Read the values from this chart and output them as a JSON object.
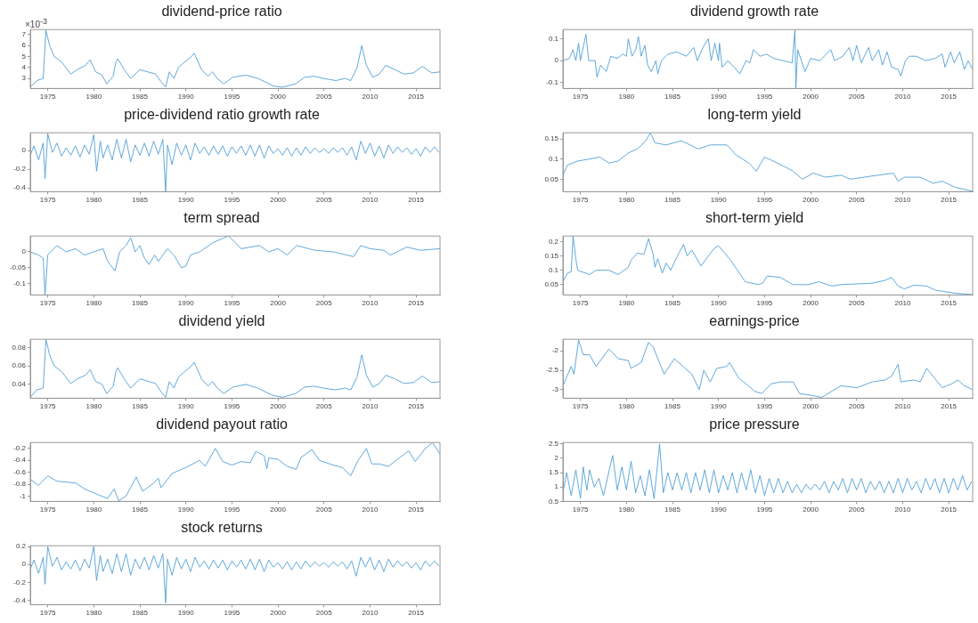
{
  "chart_data": [
    {
      "type": "line",
      "title": "dividend-price ratio",
      "color": "#4f9fd6",
      "annotations": [
        "×10$^{-3}$"
      ],
      "xlim": [
        1973.1,
        2017.6
      ],
      "xticks": [
        1975,
        1980,
        1985,
        1990,
        1995,
        2000,
        2005,
        2010,
        2015
      ],
      "ylim": [
        2.08,
        7.47
      ],
      "yticks": [
        3,
        4,
        5,
        6,
        7
      ],
      "x": [
        1973.1,
        1973.8,
        1974.5,
        1974.8,
        1975.2,
        1975.7,
        1976.5,
        1977.5,
        1978.2,
        1979.1,
        1979.6,
        1980.2,
        1980.9,
        1981.4,
        1982.1,
        1982.4,
        1982.6,
        1983.3,
        1984.0,
        1985.0,
        1986.7,
        1987.3,
        1987.8,
        1988.2,
        1988.7,
        1989.2,
        1990.0,
        1990.5,
        1990.9,
        1991.7,
        1992.4,
        1992.9,
        1993.4,
        1994.1,
        1995.1,
        1996.5,
        1997.8,
        1998.8,
        1999.5,
        2000.5,
        2001.9,
        2002.9,
        2003.9,
        2004.9,
        2006.3,
        2007.3,
        2007.9,
        2008.6,
        2009.1,
        2009.6,
        2010.3,
        2011.0,
        2011.7,
        2012.7,
        2013.7,
        2014.7,
        2015.7,
        2016.7,
        2017.6
      ],
      "values": [
        2.2,
        2.8,
        3.0,
        7.4,
        6.0,
        5.0,
        4.5,
        3.4,
        3.8,
        4.2,
        4.7,
        3.6,
        3.3,
        2.5,
        3.2,
        4.5,
        4.8,
        3.8,
        3.0,
        3.8,
        3.4,
        2.7,
        2.2,
        3.6,
        3.0,
        4.0,
        4.6,
        4.9,
        5.3,
        3.8,
        3.2,
        3.6,
        3.0,
        2.5,
        3.1,
        3.3,
        3.0,
        2.6,
        2.3,
        2.2,
        2.5,
        3.1,
        3.2,
        3.0,
        2.8,
        3.0,
        2.8,
        4.0,
        6.0,
        4.2,
        3.1,
        3.4,
        4.2,
        3.8,
        3.4,
        3.5,
        4.1,
        3.5,
        3.6
      ]
    },
    {
      "type": "line",
      "title": "dividend growth rate",
      "color": "#4f9fd6",
      "xlim": [
        1973.1,
        2017.6
      ],
      "xticks": [
        1975,
        1980,
        1985,
        1990,
        1995,
        2000,
        2005,
        2010,
        2015
      ],
      "ylim": [
        -0.127,
        0.142
      ],
      "yticks": [
        -0.1,
        0,
        0.1
      ],
      "x": [
        1973.1,
        1973.8,
        1974.2,
        1974.5,
        1974.8,
        1975.0,
        1975.6,
        1975.9,
        1976.6,
        1976.8,
        1977.2,
        1977.8,
        1978.3,
        1979,
        1979.6,
        1980,
        1980.2,
        1980.6,
        1981,
        1981.3,
        1981.6,
        1982,
        1982.3,
        1982.7,
        1983.2,
        1983.4,
        1983.8,
        1984.5,
        1985.5,
        1986.5,
        1987.3,
        1987.7,
        1988.3,
        1988.9,
        1989.2,
        1989.6,
        1990,
        1990.1,
        1990.4,
        1991,
        1991.7,
        1992.3,
        1993,
        1993.4,
        1993.8,
        1994.5,
        1995.2,
        1996,
        1997,
        1998,
        1998.3,
        1998.4,
        1998.6,
        1999,
        1999.4,
        2000,
        2001,
        2002.2,
        2002.6,
        2003.5,
        2004.2,
        2004.6,
        2005,
        2005.5,
        2006.3,
        2006.7,
        2007.4,
        2007.8,
        2008.3,
        2008.8,
        2009.5,
        2009.8,
        2010.3,
        2010.7,
        2011.5,
        2012.5,
        2013.5,
        2014.3,
        2014.6,
        2015.2,
        2015.6,
        2016.2,
        2016.7,
        2017.1,
        2017.6
      ],
      "values": [
        0,
        0.01,
        0.05,
        0,
        0.08,
        0,
        0.12,
        0,
        0,
        -0.075,
        -0.02,
        -0.05,
        0.02,
        0.01,
        0.03,
        0.02,
        0.1,
        0.02,
        0.05,
        0.11,
        0.02,
        0.07,
        -0.02,
        -0.05,
        0,
        -0.06,
        0,
        0.03,
        0.04,
        0.02,
        0.06,
        0,
        0.06,
        0.1,
        0,
        0.08,
        0,
        0.08,
        -0.03,
        0,
        -0.03,
        -0.06,
        0,
        -0.01,
        0.05,
        0.02,
        0.03,
        0.01,
        0,
        -0.01,
        0.142,
        -0.127,
        0.05,
        0,
        -0.05,
        0.01,
        0,
        0.05,
        0,
        0.02,
        0.06,
        0,
        0.07,
        -0.01,
        0.06,
        0,
        0.05,
        -0.02,
        0.04,
        -0.03,
        -0.04,
        -0.07,
        0,
        0.02,
        0.02,
        0,
        0.01,
        0.03,
        -0.03,
        0.04,
        -0.01,
        0.04,
        -0.04,
        0,
        -0.04
      ]
    },
    {
      "type": "line",
      "title": "price-dividend ratio growth rate",
      "color": "#4f9fd6",
      "xlim": [
        1973.1,
        2017.6
      ],
      "xticks": [
        1975,
        1980,
        1985,
        1990,
        1995,
        2000,
        2005,
        2010,
        2015
      ],
      "ylim": [
        -0.44,
        0.19
      ],
      "yticks": [
        -0.4,
        -0.2,
        0
      ],
      "x": [
        1973.1,
        1973.5,
        1974,
        1974.5,
        1974.7,
        1975,
        1975.5,
        1976,
        1976.5,
        1977,
        1977.5,
        1978,
        1978.5,
        1979,
        1979.5,
        1980,
        1980.3,
        1980.7,
        1981,
        1981.5,
        1982,
        1982.5,
        1983,
        1983.5,
        1984,
        1984.5,
        1985,
        1985.5,
        1986,
        1986.5,
        1987,
        1987.5,
        1987.8,
        1988,
        1988.5,
        1989,
        1989.5,
        1990,
        1990.5,
        1991,
        1991.5,
        1992,
        1992.5,
        1993,
        1993.5,
        1994,
        1994.5,
        1995,
        1995.5,
        1996,
        1996.5,
        1997,
        1997.5,
        1998,
        1998.5,
        1999,
        1999.5,
        2000,
        2000.5,
        2001,
        2001.5,
        2002,
        2002.5,
        2003,
        2003.5,
        2004,
        2004.5,
        2005,
        2005.5,
        2006,
        2006.5,
        2007,
        2007.5,
        2008,
        2008.5,
        2009,
        2009.5,
        2010,
        2010.5,
        2011,
        2011.5,
        2012,
        2012.5,
        2013,
        2013.5,
        2014,
        2014.5,
        2015,
        2015.5,
        2016,
        2016.5,
        2017,
        2017.5
      ],
      "values": [
        -0.05,
        0.05,
        -0.1,
        0.08,
        -0.3,
        0.18,
        -0.02,
        0.08,
        -0.06,
        0.03,
        -0.05,
        0.05,
        -0.07,
        0.06,
        -0.04,
        0.17,
        -0.22,
        0.1,
        -0.08,
        0.06,
        -0.1,
        0.12,
        -0.08,
        0.12,
        -0.12,
        0.06,
        -0.05,
        0.08,
        -0.06,
        0.1,
        -0.04,
        0.12,
        -0.44,
        0.06,
        -0.15,
        0.08,
        -0.05,
        0.06,
        -0.1,
        0.08,
        -0.03,
        0.04,
        -0.05,
        0.05,
        -0.04,
        0.05,
        -0.06,
        0.04,
        -0.03,
        0.05,
        -0.05,
        0.06,
        -0.06,
        0.06,
        -0.08,
        0.05,
        -0.03,
        0.02,
        -0.05,
        0.03,
        -0.06,
        0.03,
        -0.05,
        0.04,
        -0.03,
        0.03,
        -0.02,
        0.02,
        -0.03,
        0.03,
        -0.02,
        0.03,
        -0.05,
        0.04,
        -0.1,
        0.1,
        -0.03,
        0.08,
        -0.06,
        0.05,
        -0.08,
        0.06,
        -0.03,
        0.04,
        -0.02,
        0.03,
        -0.04,
        0.02,
        -0.06,
        0.04,
        -0.02,
        0.04,
        -0.02
      ]
    },
    {
      "type": "line",
      "title": "long-term yield",
      "color": "#4f9fd6",
      "xlim": [
        1973.1,
        2017.6
      ],
      "xticks": [
        1975,
        1980,
        1985,
        1990,
        1995,
        2000,
        2005,
        2010,
        2015
      ],
      "ylim": [
        0.019,
        0.165
      ],
      "yticks": [
        0.05,
        0.1,
        0.15
      ],
      "x": [
        1973.1,
        1973.6,
        1974.7,
        1976.0,
        1977.1,
        1978.1,
        1979.1,
        1980.2,
        1981.2,
        1982.1,
        1982.6,
        1983.1,
        1984.3,
        1986.0,
        1987.8,
        1989.1,
        1990.9,
        1991.9,
        1993.3,
        1994.1,
        1995.0,
        1996.4,
        1998.1,
        1999.1,
        2000.3,
        2001.6,
        2003.3,
        2004.3,
        2006.7,
        2009.0,
        2009.5,
        2010.2,
        2011.9,
        2013.3,
        2014.3,
        2015.7,
        2016.7,
        2017.6
      ],
      "values": [
        0.06,
        0.085,
        0.095,
        0.1,
        0.105,
        0.09,
        0.095,
        0.115,
        0.125,
        0.145,
        0.165,
        0.14,
        0.135,
        0.145,
        0.125,
        0.135,
        0.135,
        0.11,
        0.09,
        0.07,
        0.105,
        0.09,
        0.07,
        0.05,
        0.065,
        0.055,
        0.06,
        0.05,
        0.058,
        0.065,
        0.045,
        0.055,
        0.055,
        0.04,
        0.045,
        0.03,
        0.025,
        0.02
      ]
    },
    {
      "type": "line",
      "title": "term spread",
      "color": "#4f9fd6",
      "xlim": [
        1973.1,
        2017.6
      ],
      "xticks": [
        1975,
        1980,
        1985,
        1990,
        1995,
        2000,
        2005,
        2010,
        2015
      ],
      "ylim": [
        -0.136,
        0.05
      ],
      "yticks": [
        -0.1,
        -0.05,
        0
      ],
      "x": [
        1973.1,
        1974,
        1974.5,
        1974.7,
        1975,
        1976,
        1977,
        1978,
        1979,
        1980,
        1981,
        1981.5,
        1982.3,
        1982.8,
        1983.5,
        1984,
        1984.5,
        1985,
        1985.5,
        1986,
        1986.6,
        1987,
        1988,
        1988.7,
        1989.5,
        1990,
        1990.5,
        1991.5,
        1993,
        1994.6,
        1995,
        1996,
        1998,
        1999,
        2000,
        2001,
        2002,
        2004,
        2006,
        2007.5,
        2008.2,
        2009,
        2010,
        2011.5,
        2012.2,
        2014,
        2015.5,
        2017.6
      ],
      "values": [
        0,
        -0.01,
        -0.02,
        -0.136,
        -0.01,
        0.02,
        0,
        0.01,
        -0.01,
        0,
        0.01,
        -0.03,
        -0.06,
        0,
        0.02,
        0.045,
        0,
        0.02,
        -0.02,
        -0.04,
        -0.01,
        -0.03,
        0.01,
        -0.01,
        -0.05,
        -0.045,
        -0.01,
        0,
        0.03,
        0.05,
        0.04,
        0.01,
        0.02,
        0,
        0.01,
        -0.01,
        0.02,
        0.005,
        0,
        -0.01,
        -0.015,
        0.02,
        0.01,
        0.005,
        -0.01,
        0.015,
        0.005,
        0.01
      ]
    },
    {
      "type": "line",
      "title": "short-term yield",
      "color": "#4f9fd6",
      "xlim": [
        1973.1,
        2017.6
      ],
      "xticks": [
        1975,
        1980,
        1985,
        1990,
        1995,
        2000,
        2005,
        2010,
        2015
      ],
      "ylim": [
        0.014,
        0.219
      ],
      "yticks": [
        0.05,
        0.1,
        0.15,
        0.2
      ],
      "x": [
        1973.1,
        1973.6,
        1974.0,
        1974.2,
        1974.5,
        1974.7,
        1976.0,
        1976.7,
        1978.1,
        1979.1,
        1980.2,
        1980.5,
        1981.2,
        1981.9,
        1982.4,
        1982.9,
        1983.1,
        1983.4,
        1983.9,
        1984.3,
        1984.8,
        1985.7,
        1986.2,
        1986.6,
        1987.1,
        1988.1,
        1989.5,
        1990.0,
        1991.2,
        1992.9,
        1994.3,
        1994.8,
        1995.3,
        1996.7,
        1998.1,
        1999.8,
        2000.9,
        2002.3,
        2003.3,
        2006.7,
        2008.1,
        2008.8,
        2009.5,
        2010.2,
        2011.2,
        2012.6,
        2013.6,
        2014.7,
        2015.7,
        2016.8,
        2017.6
      ],
      "values": [
        0.06,
        0.09,
        0.095,
        0.219,
        0.14,
        0.1,
        0.085,
        0.1,
        0.1,
        0.085,
        0.11,
        0.135,
        0.16,
        0.155,
        0.21,
        0.155,
        0.11,
        0.14,
        0.09,
        0.125,
        0.1,
        0.16,
        0.19,
        0.15,
        0.17,
        0.115,
        0.175,
        0.185,
        0.14,
        0.06,
        0.05,
        0.055,
        0.08,
        0.075,
        0.05,
        0.05,
        0.06,
        0.045,
        0.05,
        0.055,
        0.065,
        0.075,
        0.045,
        0.035,
        0.048,
        0.045,
        0.03,
        0.025,
        0.02,
        0.017,
        0.015
      ]
    },
    {
      "type": "line",
      "title": "dividend yield",
      "color": "#4f9fd6",
      "xlim": [
        1973.1,
        2017.6
      ],
      "xticks": [
        1975,
        1980,
        1985,
        1990,
        1995,
        2000,
        2005,
        2010,
        2015
      ],
      "ylim": [
        0.025,
        0.089
      ],
      "yticks": [
        0.04,
        0.06,
        0.08
      ],
      "x": [
        1973.1,
        1973.8,
        1974.5,
        1974.8,
        1975.2,
        1975.7,
        1976.5,
        1977.5,
        1978.2,
        1979.1,
        1979.6,
        1980.2,
        1980.9,
        1981.4,
        1982.1,
        1982.4,
        1982.6,
        1983.3,
        1984.0,
        1985.0,
        1986.7,
        1987.3,
        1987.8,
        1988.2,
        1988.7,
        1989.2,
        1990.0,
        1990.5,
        1990.9,
        1991.7,
        1992.4,
        1992.9,
        1993.4,
        1994.1,
        1995.1,
        1996.5,
        1997.8,
        1998.8,
        1999.5,
        2000.5,
        2001.9,
        2002.9,
        2003.9,
        2004.9,
        2006.3,
        2007.3,
        2007.9,
        2008.6,
        2009.1,
        2009.6,
        2010.3,
        2011.0,
        2011.7,
        2012.7,
        2013.7,
        2014.7,
        2015.7,
        2016.7,
        2017.6
      ],
      "values": [
        0.026,
        0.034,
        0.036,
        0.089,
        0.072,
        0.06,
        0.054,
        0.041,
        0.046,
        0.05,
        0.056,
        0.043,
        0.04,
        0.03,
        0.038,
        0.054,
        0.058,
        0.046,
        0.036,
        0.046,
        0.041,
        0.032,
        0.026,
        0.043,
        0.036,
        0.048,
        0.055,
        0.059,
        0.064,
        0.046,
        0.038,
        0.043,
        0.036,
        0.03,
        0.037,
        0.04,
        0.036,
        0.031,
        0.028,
        0.026,
        0.03,
        0.037,
        0.038,
        0.036,
        0.034,
        0.036,
        0.034,
        0.048,
        0.072,
        0.05,
        0.037,
        0.041,
        0.05,
        0.046,
        0.041,
        0.042,
        0.049,
        0.042,
        0.043
      ]
    },
    {
      "type": "line",
      "title": "earnings-price",
      "color": "#4f9fd6",
      "xlim": [
        1973.1,
        2017.6
      ],
      "xticks": [
        1975,
        1980,
        1985,
        1990,
        1995,
        2000,
        2005,
        2010,
        2015
      ],
      "ylim": [
        -3.22,
        -1.7
      ],
      "yticks": [
        -3,
        -2.5,
        -2
      ],
      "x": [
        1973.1,
        1974.0,
        1974.3,
        1974.8,
        1975.3,
        1976.0,
        1976.7,
        1978.1,
        1979.1,
        1980.2,
        1980.5,
        1981.6,
        1982.4,
        1982.9,
        1984.1,
        1985.2,
        1987.1,
        1987.9,
        1988.4,
        1989.1,
        1989.8,
        1990.9,
        1991.2,
        1992.2,
        1994.0,
        1994.7,
        1995.7,
        1996.7,
        1998.1,
        1998.8,
        2000.2,
        2001.2,
        2003.3,
        2005.0,
        2006.7,
        2008.1,
        2008.8,
        2009.5,
        2009.8,
        2011.2,
        2011.9,
        2012.6,
        2014.3,
        2015.3,
        2016.0,
        2016.7,
        2017.6
      ],
      "values": [
        -2.9,
        -2.4,
        -2.6,
        -1.72,
        -2.1,
        -2.1,
        -2.4,
        -1.95,
        -2.2,
        -2.25,
        -2.45,
        -2.3,
        -1.78,
        -1.9,
        -2.6,
        -2.2,
        -2.6,
        -3.0,
        -2.5,
        -2.8,
        -2.45,
        -2.4,
        -2.3,
        -2.7,
        -3.05,
        -3.1,
        -2.85,
        -2.8,
        -2.8,
        -3.1,
        -3.15,
        -3.2,
        -2.9,
        -2.95,
        -2.8,
        -2.75,
        -2.65,
        -2.35,
        -2.8,
        -2.75,
        -2.8,
        -2.45,
        -2.95,
        -2.85,
        -2.75,
        -2.9,
        -3.0
      ]
    },
    {
      "type": "line",
      "title": "dividend payout ratio",
      "color": "#4f9fd6",
      "xlim": [
        1973.1,
        2017.6
      ],
      "xticks": [
        1975,
        1980,
        1985,
        1990,
        1995,
        2000,
        2005,
        2010,
        2015
      ],
      "ylim": [
        -1.09,
        -0.1
      ],
      "yticks": [
        -1,
        -0.8,
        -0.6,
        -0.4,
        -0.2
      ],
      "x": [
        1973.1,
        1974,
        1975,
        1976,
        1978,
        1979,
        1980.5,
        1981.5,
        1982.2,
        1982.7,
        1983.5,
        1984.2,
        1984.6,
        1985.3,
        1986.5,
        1987,
        1987.3,
        1988.5,
        1990,
        1991.5,
        1992.1,
        1993.2,
        1994,
        1995,
        1996,
        1997,
        1997.6,
        1998.5,
        1998.8,
        1999,
        2000,
        2001,
        2002,
        2002.5,
        2003.7,
        2004.5,
        2006,
        2007,
        2007.9,
        2008.7,
        2009.6,
        2010.2,
        2011,
        2012,
        2013,
        2014.2,
        2014.9,
        2016,
        2016.8,
        2017.6
      ],
      "values": [
        -0.72,
        -0.82,
        -0.66,
        -0.75,
        -0.78,
        -0.88,
        -0.98,
        -1.04,
        -0.88,
        -1.08,
        -1.0,
        -0.8,
        -0.68,
        -0.92,
        -0.78,
        -0.7,
        -0.86,
        -0.62,
        -0.52,
        -0.4,
        -0.5,
        -0.2,
        -0.42,
        -0.48,
        -0.42,
        -0.44,
        -0.25,
        -0.32,
        -0.54,
        -0.36,
        -0.38,
        -0.5,
        -0.55,
        -0.35,
        -0.22,
        -0.4,
        -0.48,
        -0.52,
        -0.66,
        -0.4,
        -0.2,
        -0.46,
        -0.46,
        -0.5,
        -0.38,
        -0.24,
        -0.42,
        -0.2,
        -0.1,
        -0.3
      ]
    },
    {
      "type": "line",
      "title": "price pressure",
      "color": "#4f9fd6",
      "xlim": [
        1973.1,
        2017.6
      ],
      "xticks": [
        1975,
        1980,
        1985,
        1990,
        1995,
        2000,
        2005,
        2010,
        2015
      ],
      "ylim": [
        0.5,
        2.55
      ],
      "yticks": [
        0.5,
        1,
        1.5,
        2,
        2.5
      ],
      "x": [
        1973.1,
        1973.5,
        1974,
        1974.5,
        1975,
        1975.3,
        1975.7,
        1976,
        1976.5,
        1977,
        1977.5,
        1978,
        1978.5,
        1979,
        1979.5,
        1980,
        1980.5,
        1981,
        1981.5,
        1982,
        1982.5,
        1983,
        1983.6,
        1984,
        1984.5,
        1985,
        1985.5,
        1986,
        1986.5,
        1987,
        1987.5,
        1988,
        1988.5,
        1989,
        1989.5,
        1990,
        1990.5,
        1991,
        1991.5,
        1992,
        1992.5,
        1993,
        1993.5,
        1994,
        1994.5,
        1995,
        1995.5,
        1996,
        1996.5,
        1997,
        1997.5,
        1998,
        1998.5,
        1999,
        1999.5,
        2000,
        2000.5,
        2001,
        2001.5,
        2002,
        2002.5,
        2003,
        2003.5,
        2004,
        2004.5,
        2005,
        2005.5,
        2006,
        2006.5,
        2007,
        2007.5,
        2008,
        2008.5,
        2009,
        2009.5,
        2010,
        2010.5,
        2011,
        2011.5,
        2012,
        2012.5,
        2013,
        2013.5,
        2014,
        2014.5,
        2015,
        2015.5,
        2016,
        2016.5,
        2017,
        2017.5
      ],
      "values": [
        0.8,
        1.5,
        0.7,
        1.6,
        0.6,
        1.7,
        0.9,
        1.6,
        1.0,
        1.3,
        0.7,
        1.4,
        2.1,
        0.9,
        1.7,
        0.9,
        1.9,
        0.8,
        1.4,
        0.7,
        1.6,
        0.6,
        2.5,
        0.8,
        1.5,
        0.9,
        1.5,
        0.9,
        1.5,
        0.8,
        1.5,
        0.9,
        1.6,
        0.8,
        1.6,
        0.8,
        1.4,
        0.9,
        1.5,
        0.8,
        1.5,
        0.9,
        1.6,
        0.8,
        1.4,
        0.7,
        1.3,
        0.8,
        1.3,
        0.8,
        1.2,
        0.8,
        1.1,
        0.8,
        1.1,
        0.9,
        1.1,
        0.9,
        1.2,
        0.8,
        1.2,
        0.9,
        1.3,
        0.8,
        1.3,
        0.9,
        1.3,
        0.8,
        1.2,
        0.9,
        1.2,
        0.8,
        1.2,
        0.8,
        1.3,
        0.8,
        1.3,
        0.9,
        1.2,
        0.8,
        1.3,
        0.9,
        1.3,
        0.8,
        1.3,
        0.8,
        1.3,
        0.9,
        1.4,
        0.9,
        1.2
      ]
    },
    {
      "type": "line",
      "title": "stock returns",
      "color": "#4f9fd6",
      "xlim": [
        1973.1,
        2017.6
      ],
      "xticks": [
        1975,
        1980,
        1985,
        1990,
        1995,
        2000,
        2005,
        2010,
        2015
      ],
      "ylim": [
        -0.45,
        0.21
      ],
      "yticks": [
        -0.4,
        -0.2,
        0,
        0.2
      ],
      "x": [
        1973.1,
        1973.5,
        1974,
        1974.5,
        1974.7,
        1975,
        1975.5,
        1976,
        1976.5,
        1977,
        1977.5,
        1978,
        1978.5,
        1979,
        1979.5,
        1980,
        1980.3,
        1980.7,
        1981,
        1981.5,
        1982,
        1982.5,
        1983,
        1983.5,
        1984,
        1984.5,
        1985,
        1985.5,
        1986,
        1986.5,
        1987,
        1987.5,
        1987.8,
        1988,
        1988.5,
        1989,
        1989.5,
        1990,
        1990.5,
        1991,
        1991.5,
        1992,
        1992.5,
        1993,
        1993.5,
        1994,
        1994.5,
        1995,
        1995.5,
        1996,
        1996.5,
        1997,
        1997.5,
        1998,
        1998.5,
        1999,
        1999.5,
        2000,
        2000.5,
        2001,
        2001.5,
        2002,
        2002.5,
        2003,
        2003.5,
        2004,
        2004.5,
        2005,
        2005.5,
        2006,
        2006.5,
        2007,
        2007.5,
        2008,
        2008.5,
        2009,
        2009.5,
        2010,
        2010.5,
        2011,
        2011.5,
        2012,
        2012.5,
        2013,
        2013.5,
        2014,
        2014.5,
        2015,
        2015.5,
        2016,
        2016.5,
        2017,
        2017.5
      ],
      "values": [
        -0.05,
        0.05,
        -0.1,
        0.08,
        -0.22,
        0.2,
        -0.02,
        0.08,
        -0.06,
        0.03,
        -0.05,
        0.05,
        -0.07,
        0.06,
        -0.04,
        0.2,
        -0.18,
        0.1,
        -0.08,
        0.06,
        -0.1,
        0.12,
        -0.08,
        0.12,
        -0.12,
        0.06,
        -0.05,
        0.08,
        -0.06,
        0.1,
        -0.04,
        0.12,
        -0.43,
        0.06,
        -0.12,
        0.08,
        -0.05,
        0.06,
        -0.08,
        0.08,
        -0.03,
        0.04,
        -0.05,
        0.05,
        -0.04,
        0.05,
        -0.06,
        0.04,
        -0.03,
        0.05,
        -0.05,
        0.06,
        -0.06,
        0.06,
        -0.08,
        0.05,
        -0.03,
        0.02,
        -0.05,
        0.03,
        -0.06,
        0.03,
        -0.05,
        0.04,
        -0.03,
        0.03,
        -0.02,
        0.02,
        -0.03,
        0.03,
        -0.02,
        0.03,
        -0.05,
        0.04,
        -0.13,
        0.08,
        -0.03,
        0.08,
        -0.06,
        0.05,
        -0.08,
        0.06,
        -0.03,
        0.04,
        -0.02,
        0.03,
        -0.04,
        0.02,
        -0.06,
        0.04,
        -0.02,
        0.04,
        -0.02
      ]
    }
  ]
}
